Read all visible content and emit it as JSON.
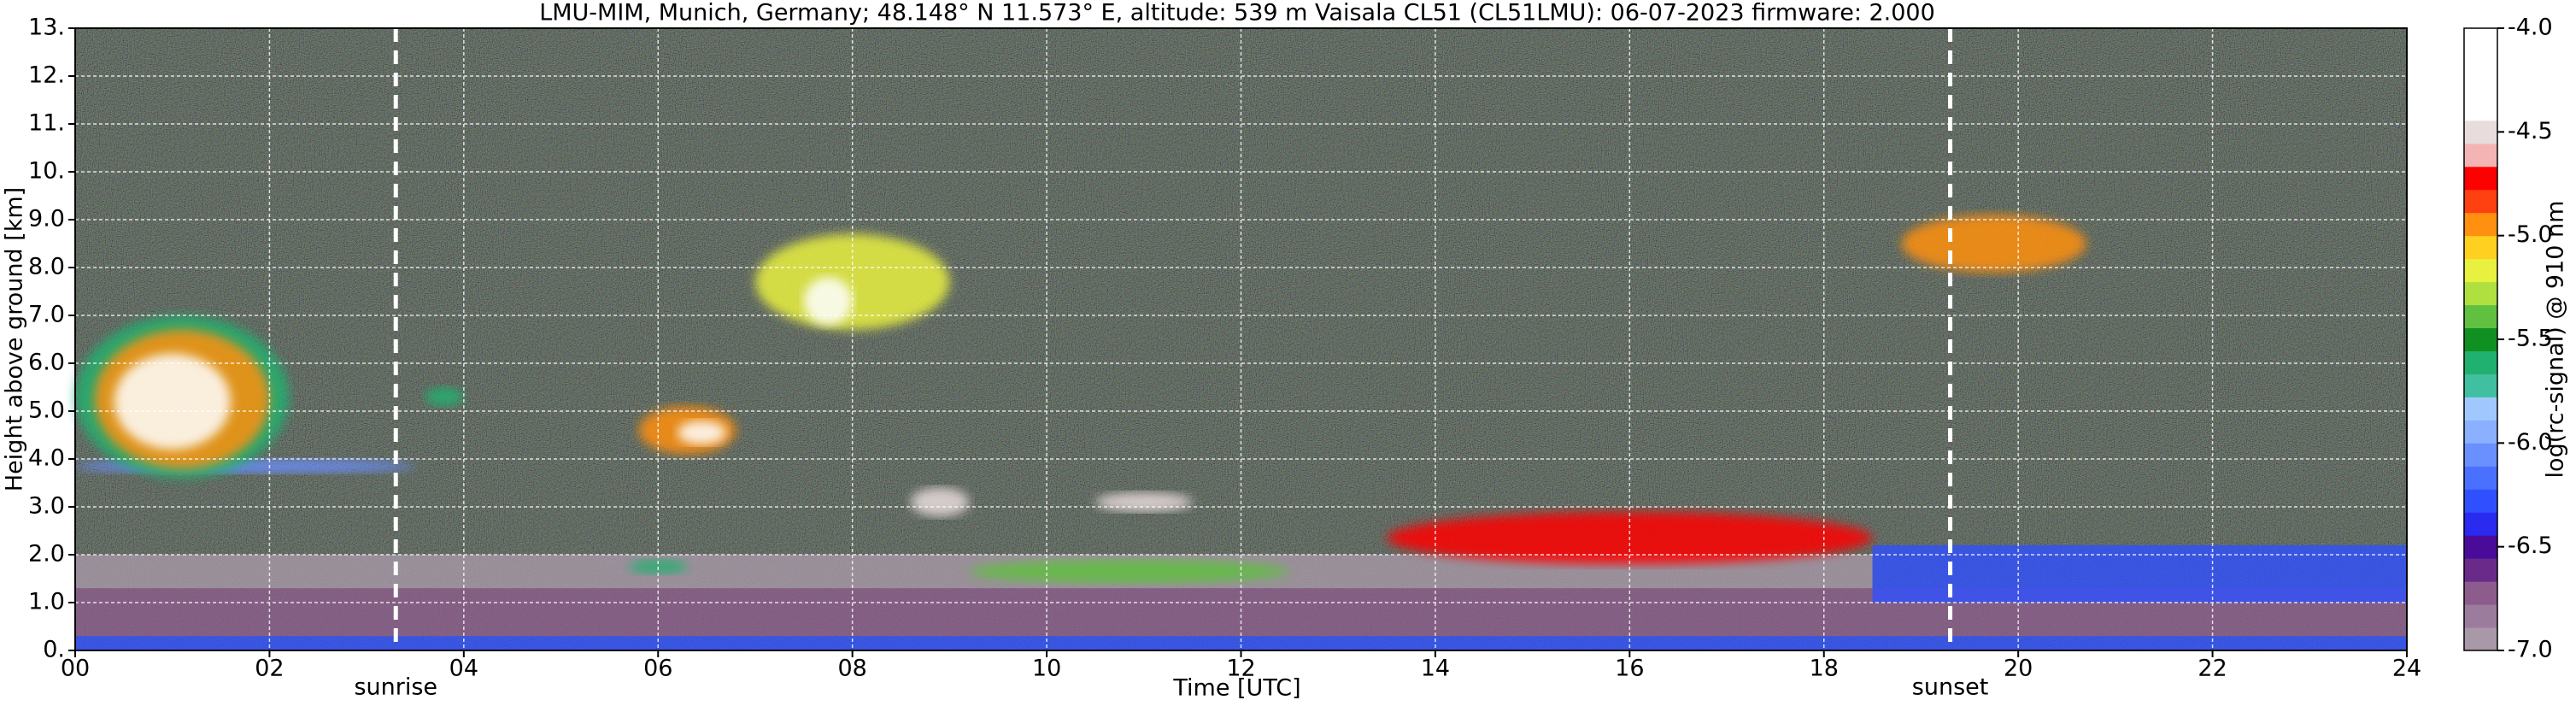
{
  "chart_data": {
    "type": "heatmap",
    "title": "LMU-MIM, Munich, Germany; 48.148° N 11.573° E, altitude: 539 m    Vaisala CL51 (CL51LMU): 06-07-2023    firmware: 2.000",
    "xlabel": "Time [UTC]",
    "ylabel": "Height above ground [km]",
    "colorbar_label": "log(rc-signal) @ 910 nm",
    "xlim": [
      0,
      24
    ],
    "xticks": [
      {
        "value": 0,
        "label": "00"
      },
      {
        "value": 2,
        "label": "02"
      },
      {
        "value": 4,
        "label": "04"
      },
      {
        "value": 6,
        "label": "06"
      },
      {
        "value": 8,
        "label": "08"
      },
      10,
      12,
      14,
      16,
      18,
      20,
      22,
      24
    ],
    "ylim": [
      0,
      13
    ],
    "yticks": [
      {
        "value": 0,
        "label": "0."
      },
      {
        "value": 1,
        "label": "1.0"
      },
      {
        "value": 2,
        "label": "2.0"
      },
      {
        "value": 3,
        "label": "3.0"
      },
      {
        "value": 4,
        "label": "4.0"
      },
      {
        "value": 5,
        "label": "5.0"
      },
      {
        "value": 6,
        "label": "6.0"
      },
      {
        "value": 7,
        "label": "7.0"
      },
      {
        "value": 8,
        "label": "8.0"
      },
      {
        "value": 9,
        "label": "9.0"
      },
      {
        "value": 10,
        "label": "10."
      },
      {
        "value": 11,
        "label": "11."
      },
      {
        "value": 12,
        "label": "12."
      },
      {
        "value": 13,
        "label": "13."
      }
    ],
    "clim": [
      -7,
      -4
    ],
    "cticks": [
      {
        "value": -4,
        "label": "-4.0"
      },
      -4.5,
      {
        "value": -5,
        "label": "-5.0"
      },
      -5.5,
      {
        "value": -6,
        "label": "-6.0"
      },
      -6.5,
      {
        "value": -7,
        "label": "-7.0"
      }
    ],
    "colormap": [
      "#a898a8",
      "#9c7c9c",
      "#8c5c8c",
      "#6a2a8a",
      "#4a0a9a",
      "#2a2af0",
      "#3050ff",
      "#4a70ff",
      "#6a90ff",
      "#8ab0ff",
      "#a0c8ff",
      "#40c0a0",
      "#20b070",
      "#109020",
      "#60c040",
      "#b0e040",
      "#e8f040",
      "#ffd020",
      "#ff9010",
      "#ff4010",
      "#ff0000",
      "#f4b4b4",
      "#e8dcdc",
      "#ffffff",
      "#ffffff",
      "#ffffff",
      "#ffffff"
    ],
    "grid": true,
    "features": [
      {
        "t": [
          0,
          24
        ],
        "h": [
          0,
          0.3
        ],
        "value": -6.3
      },
      {
        "t": [
          0,
          24
        ],
        "h": [
          0.3,
          1.3
        ],
        "value": -6.7
      },
      {
        "t": [
          0,
          18.5
        ],
        "h": [
          1.3,
          2.0
        ],
        "value": -6.9
      },
      {
        "t": [
          18.5,
          24
        ],
        "h": [
          1.0,
          2.2
        ],
        "value": -6.3
      },
      {
        "t": [
          0,
          3.5
        ],
        "h": [
          3.7,
          4.0
        ],
        "value": -6.1
      },
      {
        "t": [
          0,
          2.2
        ],
        "h": [
          3.6,
          7.0
        ],
        "value": -5.6
      },
      {
        "t": [
          0.2,
          2.0
        ],
        "h": [
          3.8,
          6.7
        ],
        "value": -5.0
      },
      {
        "t": [
          0.4,
          1.6
        ],
        "h": [
          4.2,
          6.2
        ],
        "value": -4.3
      },
      {
        "t": [
          3.6,
          4.0
        ],
        "h": [
          5.1,
          5.5
        ],
        "value": -5.6
      },
      {
        "t": [
          5.8,
          6.8
        ],
        "h": [
          4.1,
          5.1
        ],
        "value": -5.0
      },
      {
        "t": [
          6.2,
          6.7
        ],
        "h": [
          4.3,
          4.8
        ],
        "value": -4.3
      },
      {
        "t": [
          7.0,
          9.0
        ],
        "h": [
          6.7,
          8.7
        ],
        "value": -5.2
      },
      {
        "t": [
          7.5,
          8.0
        ],
        "h": [
          6.8,
          7.8
        ],
        "value": -4.4
      },
      {
        "t": [
          5.7,
          6.3
        ],
        "h": [
          1.6,
          1.9
        ],
        "value": -5.6
      },
      {
        "t": [
          8.6,
          9.2
        ],
        "h": [
          2.8,
          3.4
        ],
        "value": -4.5
      },
      {
        "t": [
          9.2,
          12.5
        ],
        "h": [
          1.4,
          1.9
        ],
        "value": -5.4
      },
      {
        "t": [
          10.5,
          11.5
        ],
        "h": [
          2.9,
          3.3
        ],
        "value": -4.5
      },
      {
        "t": [
          13.5,
          18.5
        ],
        "h": [
          1.8,
          2.9
        ],
        "value": -4.7
      },
      {
        "t": [
          18.8,
          20.7
        ],
        "h": [
          7.9,
          9.1
        ],
        "value": -5.0
      }
    ],
    "annotations": [
      {
        "text": "sunrise",
        "x": 3.3
      },
      {
        "text": "sunset",
        "x": 19.3
      }
    ]
  }
}
